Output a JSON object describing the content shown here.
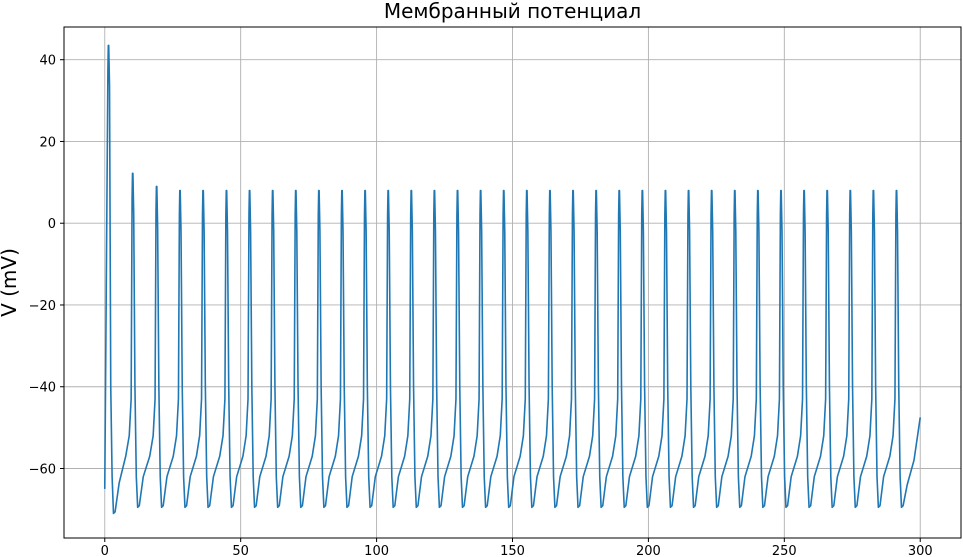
{
  "chart_data": {
    "type": "line",
    "title": "Мембранный потенциал",
    "xlabel": "",
    "ylabel": "V (mV)",
    "xlim": [
      -15,
      315
    ],
    "ylim": [
      -77,
      48
    ],
    "xticks": [
      0,
      50,
      100,
      150,
      200,
      250,
      300
    ],
    "xtick_labels": [
      "0",
      "50",
      "100",
      "150",
      "200",
      "250",
      "300"
    ],
    "yticks": [
      -60,
      -40,
      -20,
      0,
      20,
      40
    ],
    "ytick_labels": [
      "−60",
      "−40",
      "−20",
      "0",
      "20",
      "40"
    ],
    "grid": true,
    "legend": "none",
    "series": [
      {
        "color": "#1f77b4",
        "x_start": 0,
        "x_end": 300,
        "v_initial": -65,
        "v_final": -47.5,
        "afterhyperpolarization_min": -69.5,
        "first_min": -71,
        "spike_times": [
          1.3,
          10.2,
          19,
          27.6,
          36.1,
          44.7,
          53.2,
          61.7,
          70.2,
          78.7,
          87.2,
          95.7,
          104.2,
          112.7,
          121.2,
          129.7,
          138.2,
          146.7,
          155.2,
          163.7,
          172.2,
          180.7,
          189.2,
          197.7,
          206.2,
          214.7,
          223.2,
          231.7,
          240.2,
          248.7,
          257.2,
          265.7,
          274.2,
          282.7,
          291.2
        ],
        "spike_peaks": [
          43.5,
          12.2,
          9,
          8,
          8,
          8,
          8,
          8,
          8,
          8,
          8,
          8,
          8,
          8,
          8,
          8,
          8,
          8,
          8,
          8,
          8,
          8,
          8,
          8,
          8,
          8,
          8,
          8,
          8,
          8,
          8,
          8,
          8,
          8,
          8
        ]
      }
    ]
  }
}
